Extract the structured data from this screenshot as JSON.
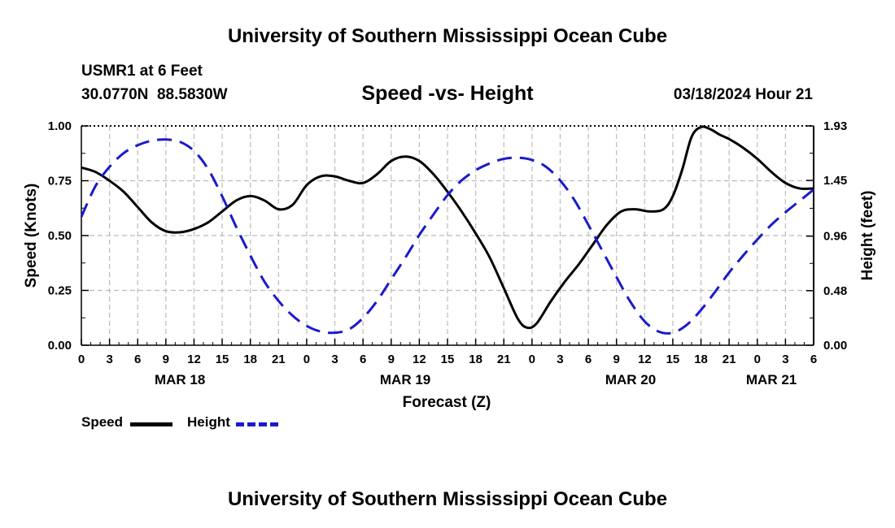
{
  "header": {
    "title": "University of Southern Mississippi Ocean Cube",
    "station": "USMR1 at 6 Feet",
    "coords": "30.0770N  88.5830W",
    "subtitle": "Speed -vs- Height",
    "datetime": "03/18/2024 Hour 21"
  },
  "footer": {
    "title": "University of Southern Mississippi Ocean Cube"
  },
  "legend": {
    "speed": "Speed",
    "height": "Height"
  },
  "colors": {
    "speed": "#000000",
    "height": "#1a1acc",
    "grid": "#bbbbbb"
  },
  "chart_data": {
    "type": "line",
    "title": "Speed -vs- Height",
    "xlabel": "Forecast (Z)",
    "ylabel": "Speed (Knots)",
    "y2label": "Height (feet)",
    "xlim": [
      0,
      78
    ],
    "ylim": [
      0,
      1
    ],
    "y2lim": [
      0,
      1.93
    ],
    "x_ticks": [
      0,
      3,
      6,
      9,
      12,
      15,
      18,
      21,
      24,
      27,
      30,
      33,
      36,
      39,
      42,
      45,
      48,
      51,
      54,
      57,
      60,
      63,
      66,
      69,
      72,
      75,
      78
    ],
    "x_tick_labels": [
      "0",
      "3",
      "6",
      "9",
      "12",
      "15",
      "18",
      "21",
      "0",
      "3",
      "6",
      "9",
      "12",
      "15",
      "18",
      "21",
      "0",
      "3",
      "6",
      "9",
      "12",
      "15",
      "18",
      "21",
      "0",
      "3",
      "6"
    ],
    "date_labels": [
      {
        "x": 10.5,
        "label": "MAR 18"
      },
      {
        "x": 34.5,
        "label": "MAR 19"
      },
      {
        "x": 58.5,
        "label": "MAR 20"
      },
      {
        "x": 73.5,
        "label": "MAR 21"
      }
    ],
    "y_ticks": [
      0,
      0.25,
      0.5,
      0.75,
      1.0
    ],
    "y_tick_labels": [
      "0.00",
      "0.25",
      "0.50",
      "0.75",
      "1.00"
    ],
    "y2_ticks": [
      0,
      0.48,
      0.96,
      1.45,
      1.93
    ],
    "y2_tick_labels": [
      "0.00",
      "0.48",
      "0.96",
      "1.45",
      "1.93"
    ],
    "series": [
      {
        "name": "Speed",
        "axis": "left",
        "style": "solid",
        "x": [
          0,
          1.5,
          3,
          4.5,
          6,
          7.5,
          9,
          10.5,
          12,
          13.5,
          15,
          16.5,
          18,
          19.5,
          21,
          22.5,
          24,
          25.5,
          27,
          28.5,
          30,
          31.5,
          33,
          34.5,
          36,
          37.5,
          39,
          40.5,
          42,
          43.5,
          45,
          46.5,
          47.5,
          48.5,
          50,
          51.5,
          53,
          54.5,
          56,
          57.5,
          59,
          60.5,
          62,
          63,
          64,
          65,
          66,
          67,
          68,
          69,
          70.5,
          72,
          73.5,
          75,
          76.5,
          78
        ],
        "values": [
          0.81,
          0.79,
          0.75,
          0.7,
          0.63,
          0.56,
          0.52,
          0.515,
          0.53,
          0.56,
          0.61,
          0.66,
          0.68,
          0.66,
          0.62,
          0.64,
          0.73,
          0.77,
          0.77,
          0.75,
          0.74,
          0.78,
          0.84,
          0.86,
          0.84,
          0.78,
          0.7,
          0.61,
          0.51,
          0.4,
          0.26,
          0.12,
          0.08,
          0.1,
          0.2,
          0.29,
          0.37,
          0.46,
          0.55,
          0.61,
          0.62,
          0.61,
          0.62,
          0.68,
          0.8,
          0.95,
          0.995,
          0.985,
          0.96,
          0.94,
          0.9,
          0.85,
          0.79,
          0.74,
          0.715,
          0.715
        ]
      },
      {
        "name": "Height",
        "axis": "right",
        "style": "dashed",
        "x": [
          0,
          1.5,
          3,
          4.5,
          6,
          7.5,
          9,
          10.5,
          12,
          13.5,
          15,
          16.5,
          18,
          19.5,
          21,
          22.5,
          24,
          25.5,
          27,
          28.5,
          30,
          31.5,
          33,
          34.5,
          36,
          37.5,
          39,
          40.5,
          42,
          43.5,
          45,
          46.5,
          48,
          49.5,
          51,
          52.5,
          54,
          55.5,
          57,
          58.5,
          60,
          61.5,
          63,
          64.5,
          66,
          67.5,
          69,
          70.5,
          72,
          73.5,
          75,
          76.5,
          78
        ],
        "values": [
          1.13,
          1.4,
          1.57,
          1.69,
          1.76,
          1.8,
          1.81,
          1.79,
          1.71,
          1.55,
          1.31,
          1.04,
          0.79,
          0.56,
          0.39,
          0.26,
          0.17,
          0.12,
          0.11,
          0.14,
          0.24,
          0.39,
          0.58,
          0.77,
          0.97,
          1.15,
          1.32,
          1.45,
          1.54,
          1.6,
          1.64,
          1.65,
          1.63,
          1.57,
          1.45,
          1.28,
          1.06,
          0.83,
          0.6,
          0.38,
          0.21,
          0.12,
          0.11,
          0.18,
          0.31,
          0.47,
          0.64,
          0.79,
          0.93,
          1.06,
          1.17,
          1.27,
          1.37
        ]
      }
    ]
  }
}
